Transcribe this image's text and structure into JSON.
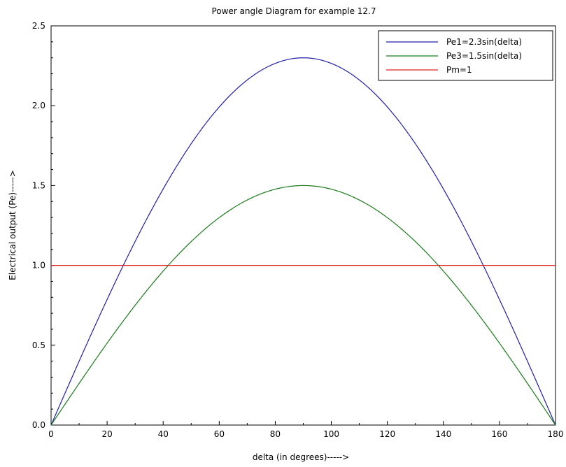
{
  "chart_data": {
    "type": "line",
    "title": "Power angle Diagram for example 12.7",
    "xlabel": "delta (in degrees)----->",
    "ylabel": "Electrical output (Pe)----->",
    "xlim": [
      0,
      180
    ],
    "ylim": [
      0,
      2.5
    ],
    "xticks": [
      "0",
      "20",
      "40",
      "60",
      "80",
      "100",
      "120",
      "140",
      "160",
      "180"
    ],
    "yticks": [
      "0.0",
      "0.5",
      "1.0",
      "1.5",
      "2.0",
      "2.5"
    ],
    "grid": false,
    "legend_position": "top-right",
    "series": [
      {
        "name": "Pe1=2.3sin(delta)",
        "color": "#1f1fa8",
        "x": [
          0,
          10,
          20,
          30,
          40,
          50,
          60,
          70,
          80,
          90,
          100,
          110,
          120,
          130,
          140,
          150,
          160,
          170,
          180
        ],
        "y": [
          0,
          0.399,
          0.787,
          1.15,
          1.478,
          1.762,
          1.992,
          2.161,
          2.265,
          2.3,
          2.265,
          2.161,
          1.992,
          1.762,
          1.478,
          1.15,
          0.787,
          0.399,
          0
        ]
      },
      {
        "name": "Pe3=1.5sin(delta)",
        "color": "#1a7a1a",
        "x": [
          0,
          10,
          20,
          30,
          40,
          50,
          60,
          70,
          80,
          90,
          100,
          110,
          120,
          130,
          140,
          150,
          160,
          170,
          180
        ],
        "y": [
          0,
          0.26,
          0.513,
          0.75,
          0.964,
          1.149,
          1.299,
          1.41,
          1.477,
          1.5,
          1.477,
          1.41,
          1.299,
          1.149,
          0.964,
          0.75,
          0.513,
          0.26,
          0
        ]
      },
      {
        "name": "Pm=1",
        "color": "#e02020",
        "x": [
          0,
          180
        ],
        "y": [
          1,
          1
        ]
      }
    ]
  }
}
